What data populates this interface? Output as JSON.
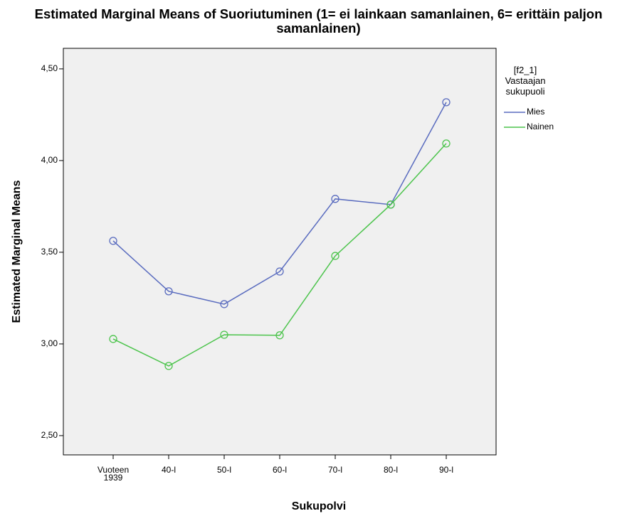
{
  "chart_data": {
    "type": "line",
    "title": "Estimated Marginal Means of Suoriutuminen (1= ei lainkaan samanlainen, 6= erittäin paljon samanlainen)",
    "x_label": "Sukupolvi",
    "y_label": "Estimated Marginal Means",
    "legend_title": "[f2_1] Vastaajan sukupuoli",
    "legend": "right",
    "categories": [
      "Vuoteen 1939",
      "40-l",
      "50-l",
      "60-l",
      "70-l",
      "80-l",
      "90-l"
    ],
    "series": [
      {
        "name": "Mies",
        "color": "#5a6cbf",
        "values": [
          3.562,
          3.287,
          3.217,
          3.395,
          3.791,
          3.76,
          4.318
        ]
      },
      {
        "name": "Nainen",
        "color": "#4cc44c",
        "values": [
          3.027,
          2.88,
          3.05,
          3.047,
          3.48,
          3.76,
          4.093
        ]
      }
    ],
    "ylim": [
      2.395,
      4.612
    ],
    "yticks": [
      {
        "value": 2.5,
        "label": "2,50"
      },
      {
        "value": 3.0,
        "label": "3,00"
      },
      {
        "value": 3.5,
        "label": "3,50"
      },
      {
        "value": 4.0,
        "label": "4,00"
      },
      {
        "value": 4.5,
        "label": "4,50"
      }
    ]
  }
}
